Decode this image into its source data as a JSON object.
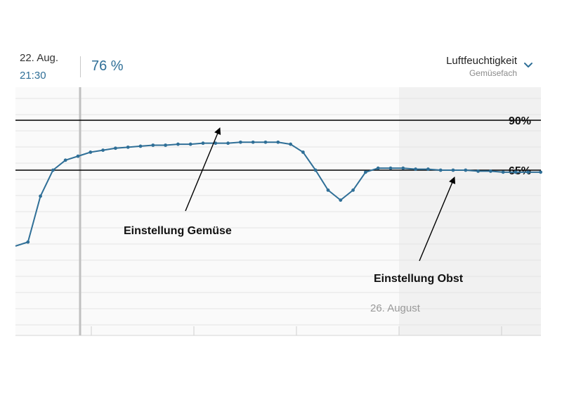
{
  "header": {
    "date": "22. Aug.",
    "time": "21:30",
    "value": "76 %",
    "metric": "Luftfeuchtigkeit",
    "location": "Gemüsefach",
    "chevron_icon": "chevron-down-icon"
  },
  "colors": {
    "accent": "#2f6f97",
    "line": "#2f6f97",
    "reference": "#000000",
    "cursor": "#c0c0c0"
  },
  "chart_data": {
    "type": "line",
    "title": "",
    "xlabel": "",
    "ylabel": "",
    "ylim": [
      25,
      100
    ],
    "grid": true,
    "x_tick_labels": [
      "26. August"
    ],
    "series": [
      {
        "values": [
          27,
          29,
          52,
          65,
          70,
          72,
          74,
          75,
          76,
          76.5,
          77,
          77.5,
          77.5,
          78,
          78,
          78.5,
          78.5,
          78.5,
          79,
          79,
          79,
          79,
          78,
          74,
          65,
          55,
          50,
          55,
          64,
          66,
          66,
          66,
          65.5,
          65.5,
          65,
          65,
          65,
          64.5,
          64.5,
          64,
          64,
          64,
          64
        ]
      }
    ],
    "reference_lines": [
      {
        "label": "90%"
      },
      {
        "label": "65%"
      }
    ],
    "annotations": [
      {
        "text": "Einstellung Gemüse"
      },
      {
        "text": "Einstellung Obst"
      }
    ],
    "cursor_label": "22. Aug. 21:30"
  }
}
